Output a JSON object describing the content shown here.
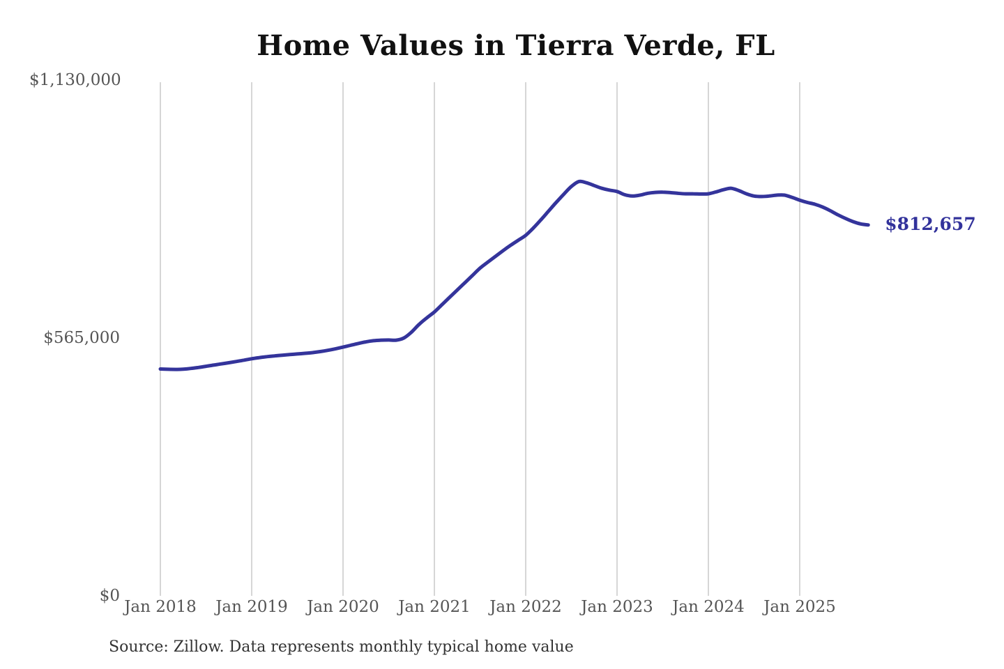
{
  "title": "Home Values in Tierra Verde, FL",
  "source_note": "Source: Zillow. Data represents monthly typical home value",
  "colors": {
    "line": "#34349b",
    "end_label": "#32329b",
    "grid": "#c9c9c9",
    "title_text": "#111111",
    "tick_text": "#555555",
    "source_text": "#333333",
    "background": "#ffffff"
  },
  "chart_data": {
    "type": "line",
    "title": "Home Values in Tierra Verde, FL",
    "series_name": "Monthly typical home value",
    "xlabel": "",
    "ylabel": "",
    "ylim": [
      0,
      1130000
    ],
    "grid": "vertical-only",
    "legend": "none",
    "y_ticks": [
      {
        "label": "$1,130,000",
        "value": 1130000
      },
      {
        "label": "$565,000",
        "value": 565000
      },
      {
        "label": "$0",
        "value": 0
      }
    ],
    "x_ticks": [
      {
        "label": "Jan 2018",
        "month_index": 0
      },
      {
        "label": "Jan 2019",
        "month_index": 12
      },
      {
        "label": "Jan 2020",
        "month_index": 24
      },
      {
        "label": "Jan 2021",
        "month_index": 36
      },
      {
        "label": "Jan 2022",
        "month_index": 48
      },
      {
        "label": "Jan 2023",
        "month_index": 60
      },
      {
        "label": "Jan 2024",
        "month_index": 72
      },
      {
        "label": "Jan 2025",
        "month_index": 84
      }
    ],
    "final_value": 812657,
    "final_value_label": "$812,657",
    "months": [
      "2018-01",
      "2018-02",
      "2018-03",
      "2018-04",
      "2018-05",
      "2018-06",
      "2018-07",
      "2018-08",
      "2018-09",
      "2018-10",
      "2018-11",
      "2018-12",
      "2019-01",
      "2019-02",
      "2019-03",
      "2019-04",
      "2019-05",
      "2019-06",
      "2019-07",
      "2019-08",
      "2019-09",
      "2019-10",
      "2019-11",
      "2019-12",
      "2020-01",
      "2020-02",
      "2020-03",
      "2020-04",
      "2020-05",
      "2020-06",
      "2020-07",
      "2020-08",
      "2020-09",
      "2020-10",
      "2020-11",
      "2020-12",
      "2021-01",
      "2021-02",
      "2021-03",
      "2021-04",
      "2021-05",
      "2021-06",
      "2021-07",
      "2021-08",
      "2021-09",
      "2021-10",
      "2021-11",
      "2021-12",
      "2022-01",
      "2022-02",
      "2022-03",
      "2022-04",
      "2022-05",
      "2022-06",
      "2022-07",
      "2022-08",
      "2022-09",
      "2022-10",
      "2022-11",
      "2022-12",
      "2023-01",
      "2023-02",
      "2023-03",
      "2023-04",
      "2023-05",
      "2023-06",
      "2023-07",
      "2023-08",
      "2023-09",
      "2023-10",
      "2023-11",
      "2023-12",
      "2024-01",
      "2024-02",
      "2024-03",
      "2024-04",
      "2024-05",
      "2024-06",
      "2024-07",
      "2024-08",
      "2024-09",
      "2024-10",
      "2024-11",
      "2024-12",
      "2025-01",
      "2025-02",
      "2025-03",
      "2025-04",
      "2025-05",
      "2025-06",
      "2025-07",
      "2025-08",
      "2025-09",
      "2025-10"
    ],
    "values": [
      497000,
      496400,
      496100,
      496600,
      498200,
      500400,
      503000,
      505600,
      508200,
      510800,
      513500,
      516500,
      519500,
      522000,
      524100,
      525800,
      527300,
      528700,
      530000,
      531400,
      533000,
      535200,
      537900,
      541200,
      545000,
      549000,
      553000,
      556500,
      559000,
      560200,
      560500,
      560300,
      565000,
      578000,
      595000,
      609000,
      622000,
      638000,
      654000,
      670000,
      686000,
      702000,
      718000,
      731000,
      743500,
      756000,
      768000,
      779000,
      790000,
      806000,
      824000,
      843000,
      862000,
      880000,
      897000,
      908000,
      905000,
      899000,
      893000,
      889000,
      886000,
      879000,
      876000,
      878000,
      882000,
      884000,
      884500,
      883500,
      882000,
      881000,
      881000,
      880500,
      881000,
      885000,
      890000,
      893000,
      888000,
      881000,
      876000,
      875000,
      876000,
      878000,
      878000,
      873000,
      867000,
      862000,
      858000,
      852000,
      844000,
      835000,
      827000,
      820000,
      815000,
      812657
    ]
  }
}
